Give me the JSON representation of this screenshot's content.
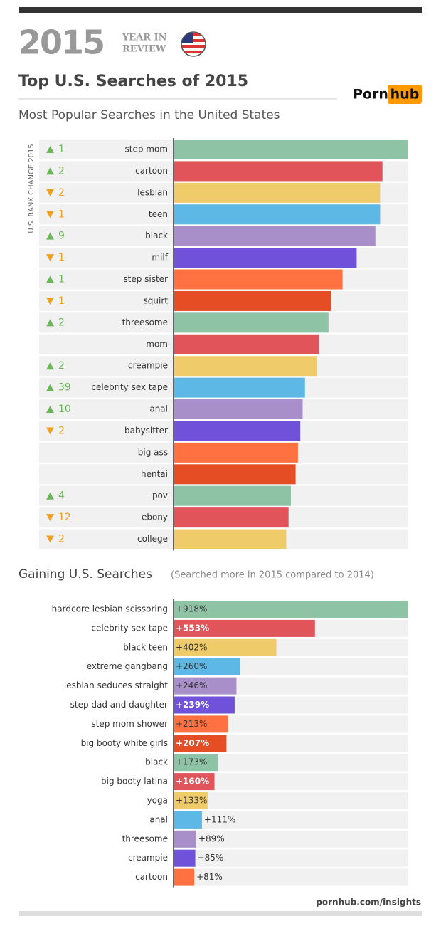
{
  "header": {
    "year": "2015",
    "badge": [
      "YEAR IN",
      "REVIEW"
    ],
    "title": "Top U.S. Searches of 2015",
    "logo": [
      "Porn",
      "hub"
    ]
  },
  "chart_data": [
    {
      "type": "bar",
      "orientation": "horizontal",
      "title": "Most Popular Searches in the United States",
      "axis_label": "U.S. RANK CHANGE 2015",
      "categories": [
        "step mom",
        "cartoon",
        "lesbian",
        "teen",
        "black",
        "milf",
        "step sister",
        "squirt",
        "threesome",
        "mom",
        "creampie",
        "celebrity sex tape",
        "anal",
        "babysitter",
        "big ass",
        "hentai",
        "pov",
        "ebony",
        "college"
      ],
      "values": [
        100,
        89,
        88,
        88,
        86,
        78,
        72,
        67,
        66,
        62,
        61,
        56,
        55,
        54,
        53,
        52,
        50,
        49,
        48
      ],
      "rank_change": [
        "1",
        "2",
        "2",
        "1",
        "9",
        "1",
        "1",
        "1",
        "2",
        null,
        "2",
        "39",
        "10",
        "2",
        null,
        null,
        "4",
        "12",
        "2"
      ],
      "rank_direction": [
        "up",
        "up",
        "down",
        "down",
        "up",
        "down",
        "up",
        "down",
        "up",
        null,
        "up",
        "up",
        "up",
        "down",
        null,
        null,
        "up",
        "down",
        "down"
      ],
      "xlim": [
        0,
        100
      ],
      "colors": [
        "#8ec4a5",
        "#e0545a",
        "#f0cb6a",
        "#5db8e6",
        "#a98fc9",
        "#6f52d9",
        "#ff7140",
        "#e54d25"
      ]
    },
    {
      "type": "bar",
      "orientation": "horizontal",
      "title": "Gaining U.S. Searches",
      "subtitle": "(Searched more in 2015 compared to 2014)",
      "categories": [
        "hardcore lesbian scissoring",
        "celebrity sex tape",
        "black teen",
        "extreme gangbang",
        "lesbian seduces straight",
        "step dad and daughter",
        "step mom shower",
        "big booty white girls",
        "black",
        "big booty latina",
        "yoga",
        "anal",
        "threesome",
        "creampie",
        "cartoon"
      ],
      "values": [
        918,
        553,
        402,
        260,
        246,
        239,
        213,
        207,
        173,
        160,
        133,
        111,
        89,
        85,
        81
      ],
      "value_labels": [
        "+918%",
        "+553%",
        "+402%",
        "+260%",
        "+246%",
        "+239%",
        "+213%",
        "+207%",
        "+173%",
        "+160%",
        "+133%",
        "+111%",
        "+89%",
        "+85%",
        "+81%"
      ],
      "xlim": [
        0,
        918
      ],
      "colors": [
        "#8ec4a5",
        "#e0545a",
        "#f0cb6a",
        "#5db8e6",
        "#a98fc9",
        "#6f52d9",
        "#ff7140",
        "#e54d25"
      ]
    }
  ],
  "footer": "pornhub.com/insights"
}
